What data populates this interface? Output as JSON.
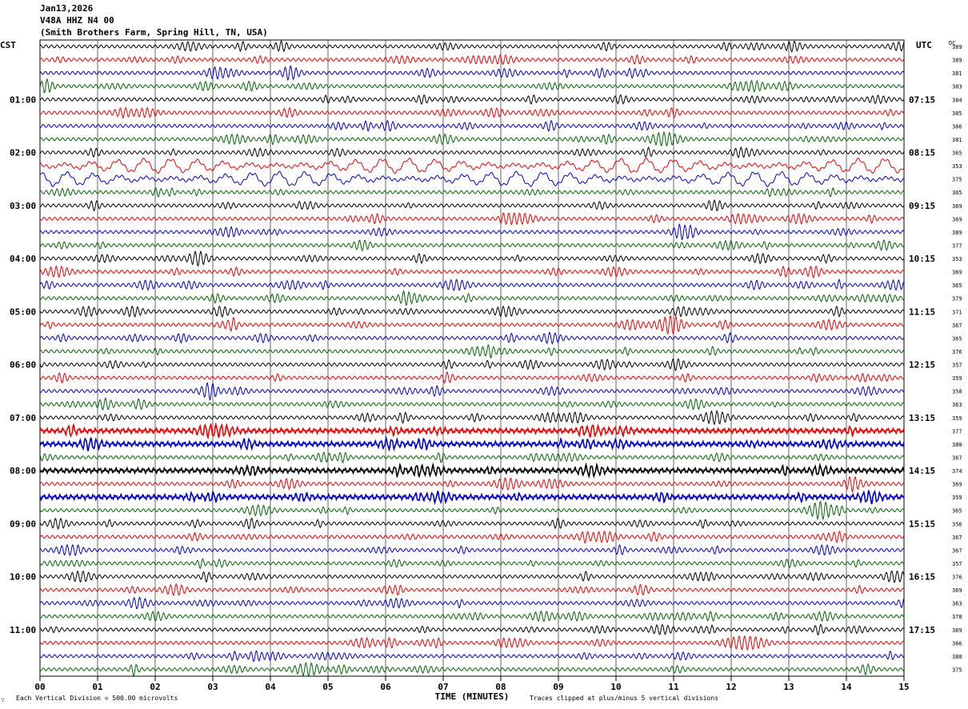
{
  "header": {
    "date": "Jan13,2026",
    "station": "V48A HHZ N4 00",
    "location": "(Smith Brothers Farm, Spring Hill, TN, USA)"
  },
  "left_axis_title": "CST",
  "right_axis_title": "UTC",
  "dc_header": "DC",
  "footer": {
    "scale_note": "Each Vertical Division =  500.00 microvolts",
    "clip_note": "Traces clipped at plus/minus 5 vertical divisions",
    "corner_mark": "∵"
  },
  "chart_data": {
    "type": "line",
    "title": "",
    "xlabel": "TIME (MINUTES)",
    "xlim": [
      0,
      15
    ],
    "x_ticks": [
      "00",
      "01",
      "02",
      "03",
      "04",
      "05",
      "06",
      "07",
      "08",
      "09",
      "10",
      "11",
      "12",
      "13",
      "14",
      "15"
    ],
    "trace_colors": [
      "#000000",
      "#ee0000",
      "#0000cc",
      "#006600"
    ],
    "trace_count": 48,
    "minutes_per_trace": 15,
    "left_hour_labels": [
      "01:00",
      "02:00",
      "03:00",
      "04:00",
      "05:00",
      "06:00",
      "07:00",
      "08:00",
      "09:00",
      "10:00",
      "11:00"
    ],
    "right_hour_labels": [
      "07:15",
      "08:15",
      "09:15",
      "10:15",
      "11:15",
      "12:15",
      "13:15",
      "14:15",
      "15:15",
      "16:15",
      "17:15"
    ],
    "dc_offsets": [
      389,
      389,
      381,
      383,
      384,
      385,
      386,
      381,
      365,
      353,
      375,
      365,
      369,
      369,
      389,
      377,
      353,
      369,
      365,
      379,
      371,
      367,
      365,
      376,
      357,
      359,
      358,
      363,
      359,
      377,
      380,
      367,
      374,
      369,
      359,
      365,
      356,
      367,
      367,
      357,
      376,
      369,
      363,
      378,
      369,
      366,
      380,
      375
    ],
    "amplitude_classes": [
      "normal",
      "normal",
      "normal",
      "normal",
      "normal",
      "normal",
      "normal",
      "normal",
      "normal",
      "large",
      "large",
      "normal",
      "normal",
      "normal",
      "normal",
      "normal",
      "normal",
      "normal",
      "normal",
      "normal",
      "normal",
      "normal",
      "normal",
      "normal",
      "normal",
      "normal",
      "normal",
      "normal",
      "normal",
      "dense",
      "dense",
      "normal",
      "dense",
      "normal",
      "dense",
      "normal",
      "normal",
      "normal",
      "normal",
      "normal",
      "normal",
      "normal",
      "normal",
      "normal",
      "normal",
      "normal",
      "normal",
      "normal"
    ]
  }
}
